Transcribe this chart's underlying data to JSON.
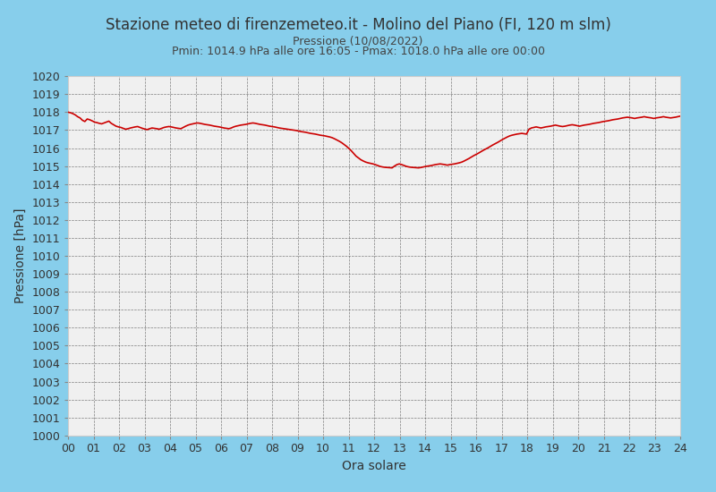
{
  "title": "Stazione meteo di firenzemeteo.it - Molino del Piano (FI, 120 m slm)",
  "subtitle1": "Pressione (10/08/2022)",
  "subtitle2": "Pmin: 1014.9 hPa alle ore 16:05 - Pmax: 1018.0 hPa alle ore 00:00",
  "xlabel": "Ora solare",
  "ylabel": "Pressione [hPa]",
  "ylim": [
    1000,
    1020
  ],
  "yticks": [
    1000,
    1001,
    1002,
    1003,
    1004,
    1005,
    1006,
    1007,
    1008,
    1009,
    1010,
    1011,
    1012,
    1013,
    1014,
    1015,
    1016,
    1017,
    1018,
    1019,
    1020
  ],
  "xticks": [
    0,
    1,
    2,
    3,
    4,
    5,
    6,
    7,
    8,
    9,
    10,
    11,
    12,
    13,
    14,
    15,
    16,
    17,
    18,
    19,
    20,
    21,
    22,
    23,
    24
  ],
  "xlim": [
    0,
    24
  ],
  "line_color": "#cc0000",
  "line_width": 1.2,
  "bg_color_plot": "#f0f0f0",
  "bg_color_fig": "#87ceeb",
  "grid_color": "#333333",
  "title_color": "#333333",
  "subtitle_color": "#444444",
  "title_fontsize": 12,
  "subtitle_fontsize": 9,
  "axis_label_fontsize": 10,
  "tick_fontsize": 9,
  "pressure_data": [
    1018.0,
    1017.97,
    1017.92,
    1017.85,
    1017.75,
    1017.68,
    1017.55,
    1017.48,
    1017.62,
    1017.58,
    1017.52,
    1017.45,
    1017.42,
    1017.38,
    1017.35,
    1017.4,
    1017.45,
    1017.5,
    1017.38,
    1017.3,
    1017.22,
    1017.18,
    1017.15,
    1017.1,
    1017.05,
    1017.08,
    1017.12,
    1017.15,
    1017.18,
    1017.2,
    1017.15,
    1017.1,
    1017.06,
    1017.03,
    1017.08,
    1017.12,
    1017.1,
    1017.08,
    1017.05,
    1017.1,
    1017.15,
    1017.18,
    1017.2,
    1017.18,
    1017.15,
    1017.12,
    1017.1,
    1017.08,
    1017.15,
    1017.22,
    1017.28,
    1017.32,
    1017.35,
    1017.38,
    1017.4,
    1017.38,
    1017.35,
    1017.32,
    1017.3,
    1017.28,
    1017.25,
    1017.22,
    1017.2,
    1017.18,
    1017.15,
    1017.12,
    1017.1,
    1017.08,
    1017.12,
    1017.18,
    1017.22,
    1017.25,
    1017.28,
    1017.3,
    1017.32,
    1017.35,
    1017.38,
    1017.4,
    1017.38,
    1017.35,
    1017.32,
    1017.3,
    1017.28,
    1017.25,
    1017.22,
    1017.2,
    1017.18,
    1017.15,
    1017.12,
    1017.1,
    1017.08,
    1017.06,
    1017.04,
    1017.02,
    1017.0,
    1016.98,
    1016.95,
    1016.92,
    1016.9,
    1016.88,
    1016.85,
    1016.82,
    1016.8,
    1016.78,
    1016.75,
    1016.72,
    1016.7,
    1016.68,
    1016.65,
    1016.62,
    1016.58,
    1016.52,
    1016.45,
    1016.38,
    1016.3,
    1016.2,
    1016.1,
    1015.98,
    1015.85,
    1015.7,
    1015.55,
    1015.45,
    1015.35,
    1015.28,
    1015.22,
    1015.18,
    1015.15,
    1015.12,
    1015.08,
    1015.03,
    1014.98,
    1014.95,
    1014.93,
    1014.92,
    1014.91,
    1014.9,
    1015.0,
    1015.08,
    1015.12,
    1015.08,
    1015.03,
    1014.98,
    1014.95,
    1014.93,
    1014.92,
    1014.91,
    1014.9,
    1014.92,
    1014.95,
    1014.98,
    1015.0,
    1015.02,
    1015.05,
    1015.08,
    1015.1,
    1015.12,
    1015.1,
    1015.08,
    1015.05,
    1015.08,
    1015.1,
    1015.12,
    1015.15,
    1015.18,
    1015.22,
    1015.28,
    1015.35,
    1015.42,
    1015.5,
    1015.58,
    1015.65,
    1015.72,
    1015.8,
    1015.88,
    1015.95,
    1016.02,
    1016.1,
    1016.18,
    1016.25,
    1016.32,
    1016.4,
    1016.48,
    1016.55,
    1016.62,
    1016.68,
    1016.72,
    1016.75,
    1016.78,
    1016.8,
    1016.82,
    1016.8,
    1016.78,
    1017.05,
    1017.12,
    1017.15,
    1017.18,
    1017.15,
    1017.12,
    1017.15,
    1017.18,
    1017.2,
    1017.22,
    1017.25,
    1017.28,
    1017.25,
    1017.22,
    1017.2,
    1017.22,
    1017.25,
    1017.28,
    1017.3,
    1017.28,
    1017.25,
    1017.22,
    1017.25,
    1017.28,
    1017.3,
    1017.32,
    1017.35,
    1017.38,
    1017.4,
    1017.42,
    1017.45,
    1017.48,
    1017.5,
    1017.52,
    1017.55,
    1017.58,
    1017.6,
    1017.62,
    1017.65,
    1017.68,
    1017.7,
    1017.72,
    1017.7,
    1017.68,
    1017.65,
    1017.68,
    1017.7,
    1017.72,
    1017.75,
    1017.72,
    1017.7,
    1017.68,
    1017.65,
    1017.68,
    1017.7,
    1017.72,
    1017.75,
    1017.72,
    1017.7,
    1017.68,
    1017.7,
    1017.72,
    1017.75,
    1017.78
  ]
}
